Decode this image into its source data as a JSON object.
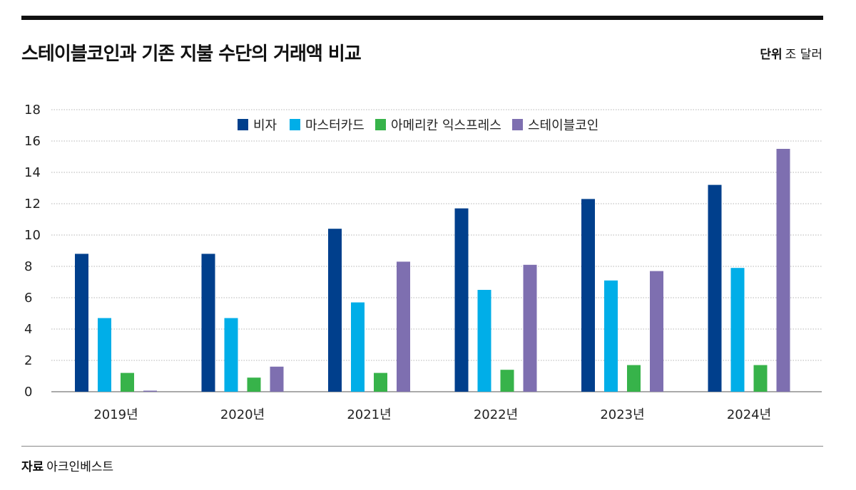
{
  "header": {
    "title": "스테이블코인과 기존 지불 수단의 거래액 비교",
    "unit_label": "단위",
    "unit_value": "조 달러"
  },
  "footer": {
    "source_label": "자료",
    "source_value": "아크인베스트"
  },
  "colors": {
    "visa": "#003f8c",
    "mastercard": "#00aee8",
    "amex": "#37b34a",
    "stablecoin": "#7e6fb0",
    "grid": "#b5b5b5",
    "rule": "#111111"
  },
  "chart_data": {
    "type": "bar",
    "categories": [
      "2019년",
      "2020년",
      "2021년",
      "2022년",
      "2023년",
      "2024년"
    ],
    "series": [
      {
        "name": "비자",
        "values": [
          8.8,
          8.8,
          10.4,
          11.7,
          12.3,
          13.2
        ]
      },
      {
        "name": "마스터카드",
        "values": [
          4.7,
          4.7,
          5.7,
          6.5,
          7.1,
          7.9
        ]
      },
      {
        "name": "아메리칸 익스프레스",
        "values": [
          1.2,
          0.9,
          1.2,
          1.4,
          1.7,
          1.7
        ]
      },
      {
        "name": "스테이블코인",
        "values": [
          0.05,
          1.6,
          8.3,
          8.1,
          7.7,
          15.5
        ]
      }
    ],
    "yticks": [
      "0",
      "2",
      "4",
      "6",
      "8",
      "10",
      "12",
      "14",
      "16",
      "18"
    ],
    "ylim": [
      0,
      18
    ],
    "grid": true,
    "legend": "top-center"
  }
}
